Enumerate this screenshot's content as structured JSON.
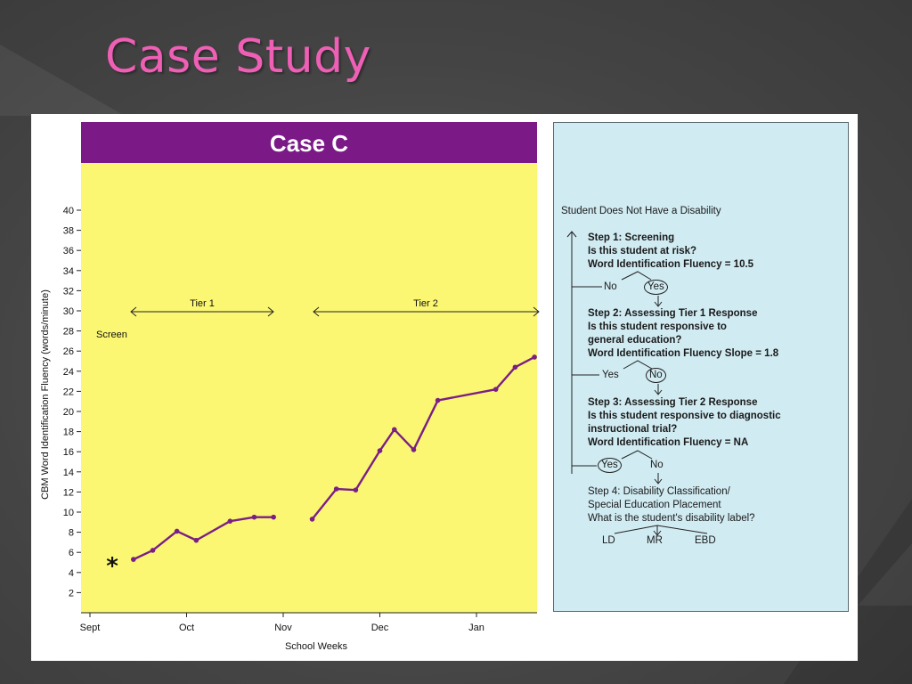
{
  "slide": {
    "title": "Case Study"
  },
  "chart_data": {
    "type": "line",
    "title": "Case C",
    "ylabel": "CBM Word Identification Fluency (words/minute)",
    "xlabel": "School Weeks",
    "ylim": [
      0,
      42
    ],
    "yticks": [
      2,
      4,
      6,
      8,
      10,
      12,
      14,
      16,
      18,
      20,
      22,
      24,
      26,
      28,
      30,
      32,
      34,
      36,
      38,
      40
    ],
    "x_month_labels": [
      "Sept",
      "Oct",
      "Nov",
      "Dec",
      "Jan"
    ],
    "annotations": {
      "screen": "Screen",
      "tier1": "Tier 1",
      "tier2": "Tier 2",
      "screen_marker": "*"
    },
    "colors": {
      "line": "#7a1f86",
      "title_bar": "#7b1a87",
      "plot_bg": "#fbf773"
    },
    "series": [
      {
        "segment": "tier1",
        "x": [
          0.45,
          0.65,
          0.9,
          1.1,
          1.45,
          1.7,
          1.9
        ],
        "y": [
          5.3,
          6.2,
          8.1,
          7.2,
          9.1,
          9.5,
          9.5
        ]
      },
      {
        "segment": "tier2",
        "x": [
          2.3,
          2.55,
          2.75,
          3.0,
          3.15,
          3.35,
          3.6,
          4.2,
          4.4,
          4.6
        ],
        "y": [
          9.3,
          12.3,
          12.2,
          16.1,
          18.2,
          16.2,
          21.1,
          22.2,
          24.4,
          25.4
        ]
      }
    ]
  },
  "flowchart": {
    "top_label": "Student Does Not Have a Disability",
    "step1": {
      "title": "Step 1: Screening",
      "q": "Is this student at risk?",
      "metric": "Word Identification Fluency = 10.5",
      "no": "No",
      "yes": "Yes",
      "selected": "Yes"
    },
    "step2": {
      "title": "Step 2: Assessing Tier 1 Response",
      "q1": "Is this student responsive to",
      "q2": "general education?",
      "metric": "Word Identification Fluency Slope = 1.8",
      "yes": "Yes",
      "no": "No",
      "selected": "No"
    },
    "step3": {
      "title": "Step 3: Assessing Tier 2 Response",
      "q1": "Is this student responsive to diagnostic",
      "q2": "instructional trial?",
      "metric": "Word Identification Fluency = NA",
      "yes": "Yes",
      "no": "No",
      "selected": "Yes"
    },
    "step4": {
      "title1": "Step 4: Disability Classification/",
      "title2": "Special Education Placement",
      "q": "What is the student's disability label?",
      "options": [
        "LD",
        "MR",
        "EBD"
      ]
    }
  }
}
